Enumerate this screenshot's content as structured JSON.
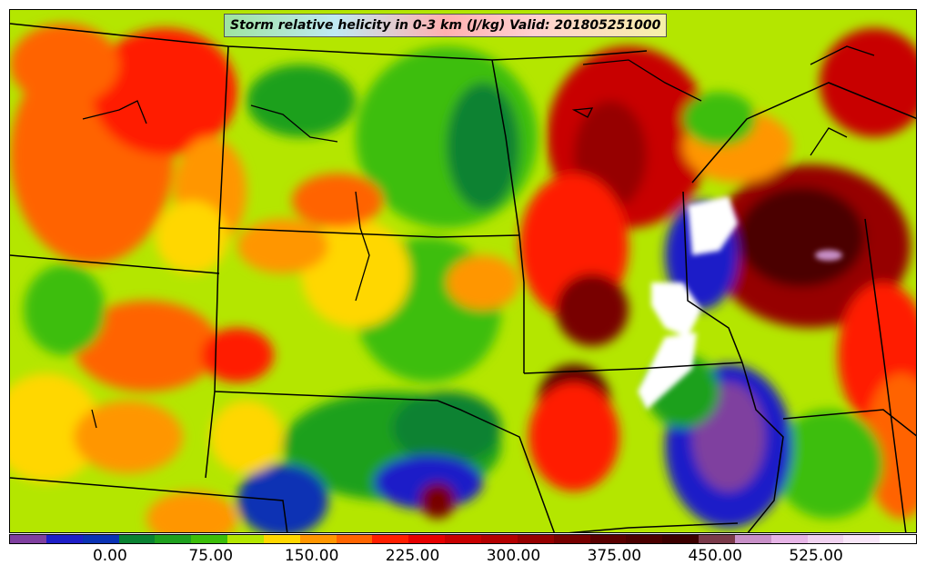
{
  "title": "Storm relative helicity in 0-3 km (J/kg) Valid: 201805251000",
  "colorbar": {
    "colors": [
      "#7f3f9f",
      "#1e1ec8",
      "#0a32b4",
      "#0a8232",
      "#1ea01e",
      "#3cbe0a",
      "#b4e600",
      "#ffd700",
      "#ff9600",
      "#ff6400",
      "#ff1e00",
      "#e60000",
      "#c80000",
      "#b40000",
      "#960000",
      "#780000",
      "#5a0000",
      "#4b0000",
      "#3c0000",
      "#7a3a4a",
      "#c890c8",
      "#e6b4e6",
      "#f0d2f0",
      "#f8e6f8",
      "#ffffff"
    ],
    "tick_labels": [
      "0.00",
      "75.00",
      "150.00",
      "225.00",
      "300.00",
      "375.00",
      "450.00",
      "525.00"
    ],
    "tick_values": [
      0,
      75,
      150,
      225,
      300,
      375,
      450,
      525
    ],
    "min": -75,
    "max": 600
  }
}
